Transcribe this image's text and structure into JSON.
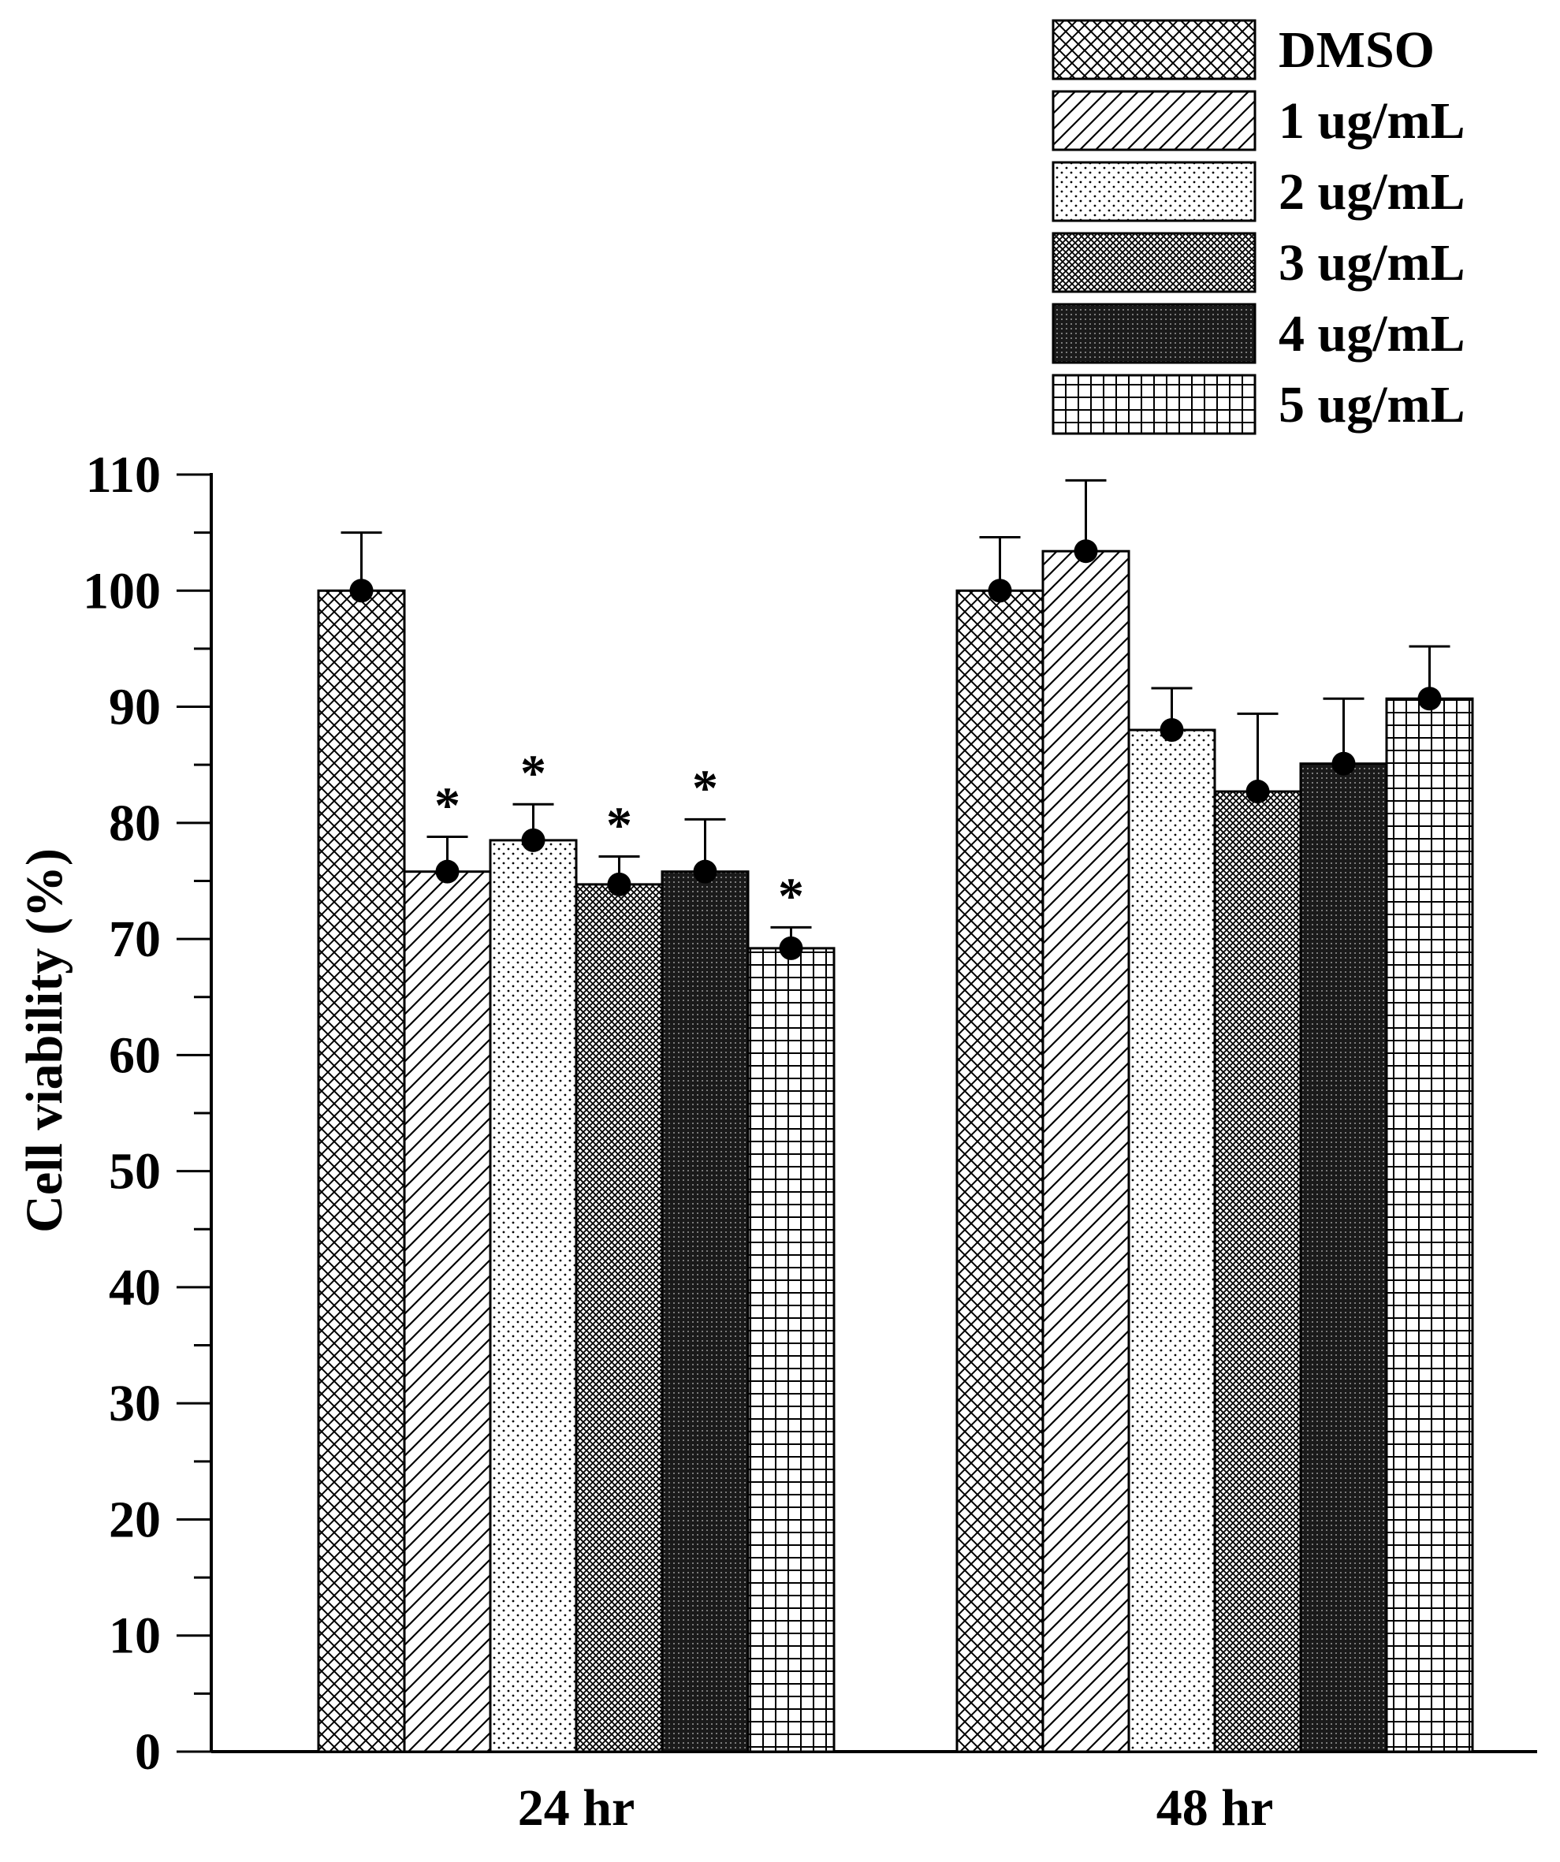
{
  "chart_data": {
    "type": "bar",
    "title": "",
    "xlabel": "",
    "ylabel": "Cell viability (%)",
    "ylim": [
      0,
      110
    ],
    "y_major_ticks": [
      0,
      10,
      20,
      30,
      40,
      50,
      60,
      70,
      80,
      90,
      100,
      110
    ],
    "y_minor_step": 5,
    "categories": [
      "24 hr",
      "48 hr"
    ],
    "legend_position": "top-right",
    "series": [
      {
        "name": "DMSO",
        "pattern": "crosshatch",
        "values": [
          100,
          100
        ],
        "errors": [
          5.0,
          4.6
        ],
        "significance": [
          "",
          ""
        ]
      },
      {
        "name": "1 ug/mL",
        "pattern": "diagonal",
        "values": [
          75.8,
          103.4
        ],
        "errors": [
          3.0,
          6.1
        ],
        "significance": [
          "*",
          ""
        ]
      },
      {
        "name": "2 ug/mL",
        "pattern": "dots",
        "values": [
          78.5,
          88.0
        ],
        "errors": [
          3.1,
          3.6
        ],
        "significance": [
          "*",
          ""
        ]
      },
      {
        "name": "3 ug/mL",
        "pattern": "fine-hatch",
        "values": [
          74.7,
          82.7
        ],
        "errors": [
          2.4,
          6.7
        ],
        "significance": [
          "*",
          ""
        ]
      },
      {
        "name": "4 ug/mL",
        "pattern": "dark",
        "values": [
          75.8,
          85.1
        ],
        "errors": [
          4.5,
          5.6
        ],
        "significance": [
          "*",
          ""
        ]
      },
      {
        "name": "5 ug/mL",
        "pattern": "grid",
        "values": [
          69.2,
          90.7
        ],
        "errors": [
          1.8,
          4.5
        ],
        "significance": [
          "*",
          ""
        ]
      }
    ],
    "colors": {
      "fill": "#ffffff",
      "ink": "#000000"
    }
  }
}
